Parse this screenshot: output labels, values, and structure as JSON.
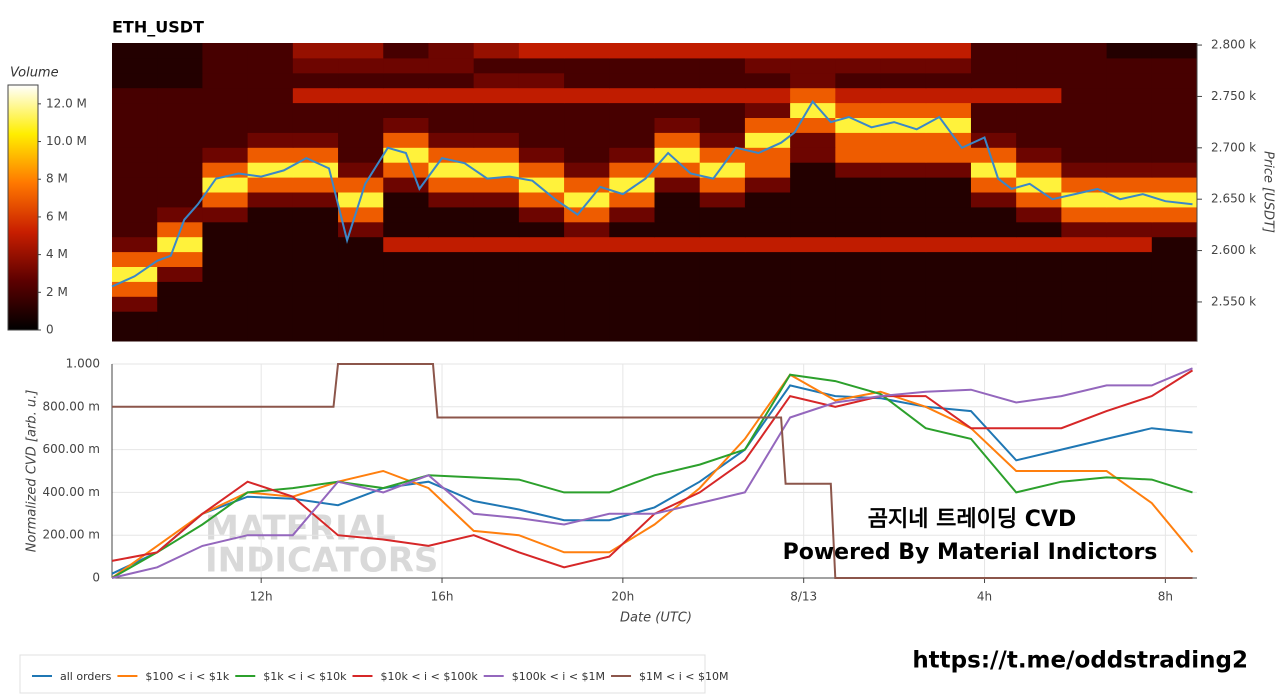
{
  "chart_data": [
    {
      "type": "heatmap",
      "title": "ETH_USDT",
      "y_label": "Price [USDT]",
      "colorbar": {
        "title": "Volume",
        "lim": [
          0,
          13
        ],
        "ticks": [
          0,
          {
            "value": 2,
            "label": "2 M"
          },
          {
            "value": 4,
            "label": "4 M"
          },
          {
            "value": 6,
            "label": "6 M"
          },
          {
            "value": 8,
            "label": "8 M"
          },
          {
            "value": 10,
            "label": "10.0 M"
          },
          {
            "value": 12,
            "label": "12.0 M"
          }
        ]
      },
      "colorscale": [
        "#000000",
        "#5c0000",
        "#c81e00",
        "#ff7800",
        "#ffee00",
        "#ffffff"
      ],
      "xlim": [
        8.7,
        32.7
      ],
      "ylim": [
        2512,
        2802
      ],
      "yticks": [
        {
          "value": 2550,
          "label": "2.550 k"
        },
        {
          "value": 2600,
          "label": "2.600 k"
        },
        {
          "value": 2650,
          "label": "2.650 k"
        },
        {
          "value": 2700,
          "label": "2.700 k"
        },
        {
          "value": 2750,
          "label": "2.750 k"
        },
        {
          "value": 2800,
          "label": "2.800 k"
        }
      ],
      "x_edges": [
        8.7,
        9.7,
        10.7,
        11.7,
        12.7,
        13.7,
        14.7,
        15.7,
        16.7,
        17.7,
        18.7,
        19.7,
        20.7,
        21.7,
        22.7,
        23.7,
        24.7,
        25.7,
        26.7,
        27.7,
        28.7,
        29.7,
        30.7,
        31.7,
        32.7
      ],
      "y_edges": [
        2512,
        2526.5,
        2541,
        2555.5,
        2570,
        2584.5,
        2599,
        2613.5,
        2628,
        2642.5,
        2657,
        2671.5,
        2686,
        2700.5,
        2715,
        2729.5,
        2744,
        2758.5,
        2773,
        2787.5,
        2802
      ],
      "z": [
        [
          1,
          1,
          1,
          1,
          1,
          1,
          1,
          1,
          1,
          1,
          1,
          1,
          1,
          1,
          1,
          1,
          1,
          1,
          1,
          1,
          1,
          1,
          1,
          1
        ],
        [
          1,
          1,
          1,
          1,
          1,
          1,
          1,
          1,
          1,
          1,
          1,
          1,
          1,
          1,
          1,
          1,
          1,
          1,
          1,
          1,
          1,
          1,
          1,
          1
        ],
        [
          3,
          1,
          1,
          1,
          1,
          1,
          1,
          1,
          1,
          1,
          1,
          1,
          1,
          1,
          1,
          1,
          1,
          1,
          1,
          1,
          1,
          1,
          1,
          1
        ],
        [
          7,
          1,
          1,
          1,
          1,
          1,
          1,
          1,
          1,
          1,
          1,
          1,
          1,
          1,
          1,
          1,
          1,
          1,
          1,
          1,
          1,
          1,
          1,
          1
        ],
        [
          11,
          3,
          1,
          1,
          1,
          1,
          1,
          1,
          1,
          1,
          1,
          1,
          1,
          1,
          1,
          1,
          1,
          1,
          1,
          1,
          1,
          1,
          1,
          1
        ],
        [
          7,
          7,
          1,
          1,
          1,
          1,
          1,
          1,
          1,
          1,
          1,
          1,
          1,
          1,
          1,
          1,
          1,
          1,
          1,
          1,
          1,
          1,
          1,
          1
        ],
        [
          3,
          11,
          1,
          1,
          1,
          1,
          5,
          5,
          5,
          5,
          5,
          5,
          5,
          5,
          5,
          5,
          5,
          5,
          5,
          5,
          5,
          5,
          5,
          1
        ],
        [
          2,
          7,
          1,
          1,
          1,
          3,
          1,
          1,
          1,
          1,
          3,
          1,
          1,
          1,
          1,
          1,
          1,
          1,
          1,
          1,
          1,
          3,
          3,
          3
        ],
        [
          2,
          3,
          3,
          1,
          1,
          7,
          1,
          1,
          1,
          3,
          7,
          3,
          1,
          1,
          1,
          1,
          1,
          1,
          1,
          1,
          3,
          7,
          7,
          7
        ],
        [
          2,
          2,
          7,
          3,
          3,
          11,
          1,
          3,
          3,
          7,
          11,
          7,
          1,
          3,
          1,
          1,
          1,
          1,
          1,
          3,
          7,
          11,
          11,
          11
        ],
        [
          2,
          2,
          11,
          7,
          7,
          7,
          3,
          7,
          7,
          11,
          7,
          11,
          3,
          7,
          3,
          1,
          1,
          1,
          1,
          7,
          11,
          7,
          7,
          7
        ],
        [
          2,
          2,
          7,
          11,
          11,
          3,
          7,
          11,
          11,
          7,
          3,
          7,
          7,
          11,
          7,
          1,
          3,
          3,
          3,
          11,
          7,
          3,
          3,
          3
        ],
        [
          2,
          2,
          3,
          7,
          7,
          2,
          11,
          7,
          7,
          3,
          2,
          3,
          11,
          7,
          7,
          3,
          7,
          7,
          7,
          7,
          3,
          2,
          2,
          2
        ],
        [
          2,
          2,
          2,
          3,
          3,
          2,
          7,
          3,
          3,
          2,
          2,
          2,
          7,
          3,
          11,
          3,
          7,
          7,
          7,
          3,
          2,
          2,
          2,
          2
        ],
        [
          2,
          2,
          2,
          2,
          2,
          2,
          3,
          2,
          2,
          2,
          2,
          2,
          3,
          2,
          7,
          7,
          11,
          11,
          11,
          2,
          2,
          2,
          2,
          2
        ],
        [
          2,
          2,
          2,
          2,
          2,
          2,
          2,
          2,
          2,
          2,
          2,
          2,
          2,
          2,
          3,
          11,
          7,
          7,
          7,
          2,
          2,
          2,
          2,
          2
        ],
        [
          2,
          2,
          2,
          2,
          5,
          5,
          5,
          5,
          5,
          5,
          5,
          5,
          5,
          5,
          5,
          7,
          5,
          5,
          5,
          5,
          5,
          2,
          2,
          2
        ],
        [
          1,
          1,
          2,
          2,
          2,
          2,
          2,
          2,
          3,
          3,
          2,
          2,
          2,
          2,
          2,
          3,
          2,
          2,
          2,
          2,
          2,
          2,
          2,
          2
        ],
        [
          1,
          1,
          2,
          2,
          3,
          3,
          3,
          3,
          2,
          2,
          2,
          2,
          2,
          2,
          3,
          3,
          3,
          3,
          3,
          2,
          2,
          2,
          2,
          2
        ],
        [
          1,
          1,
          2,
          2,
          4,
          4,
          2,
          3,
          4,
          5,
          5,
          5,
          5,
          5,
          5,
          5,
          5,
          5,
          5,
          2,
          2,
          2,
          1,
          1
        ]
      ],
      "price_line": {
        "color": "#3a87c8",
        "x": [
          8.7,
          9.2,
          9.7,
          10.0,
          10.3,
          10.6,
          11.0,
          11.5,
          12.0,
          12.5,
          13.0,
          13.5,
          13.9,
          14.3,
          14.8,
          15.2,
          15.5,
          16.0,
          16.5,
          17.0,
          17.5,
          18.0,
          18.5,
          19.0,
          19.5,
          20.0,
          20.5,
          21.0,
          21.5,
          22.0,
          22.5,
          23.0,
          23.5,
          23.8,
          24.2,
          24.6,
          25.0,
          25.5,
          26.0,
          26.5,
          27.0,
          27.5,
          28.0,
          28.3,
          28.6,
          29.0,
          29.5,
          30.0,
          30.5,
          31.0,
          31.5,
          32.0,
          32.6
        ],
        "values": [
          2565,
          2575,
          2590,
          2595,
          2630,
          2645,
          2670,
          2675,
          2672,
          2678,
          2690,
          2680,
          2610,
          2665,
          2700,
          2695,
          2660,
          2690,
          2685,
          2670,
          2672,
          2668,
          2650,
          2635,
          2662,
          2655,
          2670,
          2695,
          2675,
          2670,
          2700,
          2695,
          2705,
          2715,
          2745,
          2725,
          2730,
          2720,
          2725,
          2718,
          2730,
          2700,
          2710,
          2670,
          2660,
          2665,
          2650,
          2655,
          2660,
          2650,
          2655,
          2648,
          2645
        ]
      }
    },
    {
      "type": "line",
      "x_label": "Date (UTC)",
      "y_label": "Normalized CVD [arb. u.]",
      "xlim": [
        8.7,
        32.7
      ],
      "ylim": [
        0,
        1
      ],
      "xticks": [
        {
          "value": 12,
          "label": "12h"
        },
        {
          "value": 16,
          "label": "16h"
        },
        {
          "value": 20,
          "label": "20h"
        },
        {
          "value": 24,
          "label": "8/13"
        },
        {
          "value": 28,
          "label": "4h"
        },
        {
          "value": 32,
          "label": "8h"
        }
      ],
      "yticks": [
        0,
        {
          "value": 0.2,
          "label": "200.00 m"
        },
        {
          "value": 0.4,
          "label": "400.00 m"
        },
        {
          "value": 0.6,
          "label": "600.00 m"
        },
        {
          "value": 0.8,
          "label": "800.00 m"
        },
        {
          "value": 1,
          "label": "1.000"
        }
      ],
      "grid": true,
      "x": [
        8.7,
        9.7,
        10.7,
        11.7,
        12.7,
        13.7,
        14.7,
        15.7,
        16.7,
        17.7,
        18.7,
        19.7,
        20.7,
        21.7,
        22.7,
        23.7,
        24.7,
        25.7,
        26.7,
        27.7,
        28.7,
        29.7,
        30.7,
        31.7,
        32.6
      ],
      "series": [
        {
          "name": "all orders",
          "color": "#1f77b4",
          "values": [
            0.02,
            0.12,
            0.3,
            0.38,
            0.37,
            0.34,
            0.42,
            0.45,
            0.36,
            0.32,
            0.27,
            0.27,
            0.33,
            0.45,
            0.6,
            0.9,
            0.85,
            0.84,
            0.8,
            0.78,
            0.55,
            0.6,
            0.65,
            0.7,
            0.68
          ]
        },
        {
          "name": "$100 < i < $1k",
          "color": "#ff7f0e",
          "values": [
            0.0,
            0.15,
            0.3,
            0.4,
            0.38,
            0.45,
            0.5,
            0.42,
            0.22,
            0.2,
            0.12,
            0.12,
            0.25,
            0.42,
            0.65,
            0.95,
            0.83,
            0.87,
            0.8,
            0.7,
            0.5,
            0.5,
            0.5,
            0.35,
            0.12
          ]
        },
        {
          "name": "$1k < i < $10k",
          "color": "#2ca02c",
          "values": [
            0.0,
            0.12,
            0.25,
            0.4,
            0.42,
            0.45,
            0.42,
            0.48,
            0.47,
            0.46,
            0.4,
            0.4,
            0.48,
            0.53,
            0.6,
            0.95,
            0.92,
            0.86,
            0.7,
            0.65,
            0.4,
            0.45,
            0.47,
            0.46,
            0.4
          ]
        },
        {
          "name": "$10k < i < $100k",
          "color": "#d62728",
          "values": [
            0.08,
            0.12,
            0.3,
            0.45,
            0.38,
            0.2,
            0.18,
            0.15,
            0.2,
            0.12,
            0.05,
            0.1,
            0.3,
            0.4,
            0.55,
            0.85,
            0.8,
            0.85,
            0.85,
            0.7,
            0.7,
            0.7,
            0.78,
            0.85,
            0.97
          ]
        },
        {
          "name": "$100k < i < $1M",
          "color": "#9467bd",
          "values": [
            0.0,
            0.05,
            0.15,
            0.2,
            0.2,
            0.45,
            0.4,
            0.48,
            0.3,
            0.28,
            0.25,
            0.3,
            0.3,
            0.35,
            0.4,
            0.75,
            0.82,
            0.85,
            0.87,
            0.88,
            0.82,
            0.85,
            0.9,
            0.9,
            0.98
          ]
        },
        {
          "name": "$1M < i < $10M",
          "color": "#8c564b",
          "x": [
            8.7,
            13.6,
            13.7,
            15.8,
            15.9,
            23.5,
            23.6,
            24.6,
            24.7,
            32.6
          ],
          "values": [
            0.8,
            0.8,
            1,
            1,
            0.75,
            0.75,
            0.44,
            0.44,
            0,
            0
          ]
        }
      ],
      "annotations": [
        "곰지네 트레이딩 CVD",
        "Powered By Material Indictors"
      ],
      "watermark": [
        "MATERIAL",
        "INDICATORS"
      ]
    }
  ],
  "footer": {
    "link": "https://t.me/oddstrading2"
  }
}
